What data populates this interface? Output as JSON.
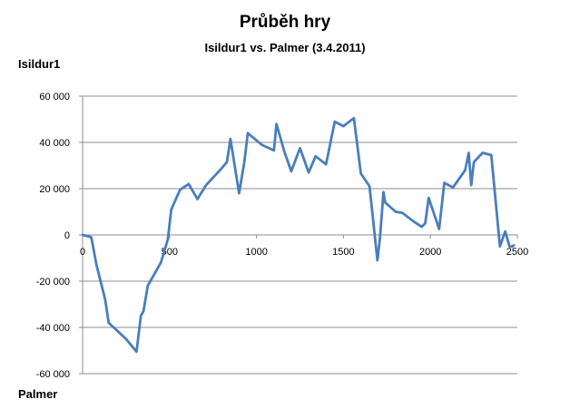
{
  "chart_data": {
    "type": "line",
    "title": "Průběh hry",
    "subtitle": "Isildur1 vs. Palmer (3.4.2011)",
    "ylabel": "Isildur1",
    "xlabel": "Palmer",
    "xlim": [
      0,
      2500
    ],
    "ylim": [
      -60000,
      60000
    ],
    "x_ticks": [
      0,
      500,
      1000,
      1500,
      2000,
      2500
    ],
    "x_tick_labels": [
      "0",
      "500",
      "1000",
      "1500",
      "2000",
      "2500"
    ],
    "y_ticks": [
      60000,
      40000,
      20000,
      0,
      -20000,
      -40000,
      -60000
    ],
    "y_tick_labels": [
      "60 000",
      "40 000",
      "20 000",
      "0",
      "-20 000",
      "-40 000",
      "-60 000"
    ],
    "grid": "horizontal",
    "line_color": "#4a7ebb",
    "series": [
      {
        "x": [
          0,
          50,
          80,
          130,
          150,
          250,
          310,
          335,
          350,
          375,
          450,
          490,
          510,
          560,
          610,
          660,
          710,
          790,
          830,
          850,
          900,
          930,
          950,
          1030,
          1100,
          1115,
          1160,
          1200,
          1250,
          1300,
          1340,
          1400,
          1450,
          1500,
          1560,
          1600,
          1650,
          1665,
          1695,
          1710,
          1730,
          1740,
          1800,
          1840,
          1900,
          1950,
          1970,
          1990,
          2050,
          2080,
          2130,
          2200,
          2220,
          2235,
          2250,
          2300,
          2350,
          2400,
          2430,
          2455,
          2470,
          2480
        ],
        "y": [
          0,
          -1000,
          -13000,
          -28000,
          -38000,
          -45000,
          -50500,
          -35000,
          -33000,
          -22000,
          -12000,
          -2000,
          11000,
          19500,
          22000,
          15500,
          21500,
          28000,
          31500,
          41500,
          18000,
          31500,
          44000,
          39000,
          36500,
          48000,
          36000,
          27500,
          37500,
          27000,
          34000,
          30500,
          49000,
          47000,
          50500,
          26500,
          21000,
          10500,
          -11000,
          -1500,
          18500,
          14000,
          10000,
          9500,
          6000,
          3500,
          5000,
          16000,
          2500,
          22500,
          20500,
          28000,
          35500,
          21500,
          31500,
          35500,
          34500,
          -5000,
          1500,
          -5000,
          -5000,
          -4500
        ]
      }
    ]
  }
}
